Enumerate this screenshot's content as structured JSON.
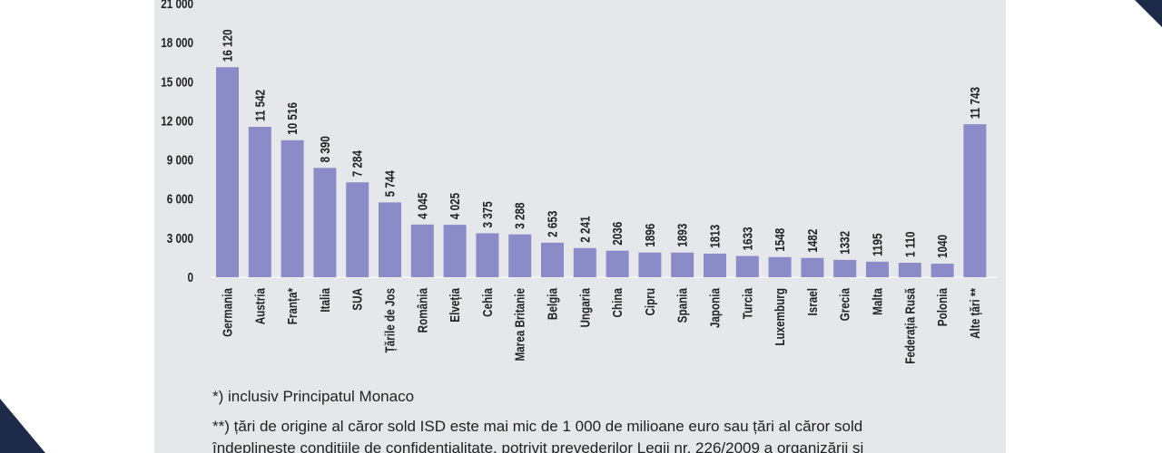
{
  "chart_data": {
    "type": "bar",
    "categories": [
      "Germania",
      "Austria",
      "Franța*",
      "Italia",
      "SUA",
      "Țările de Jos",
      "România",
      "Elveția",
      "Cehia",
      "Marea Britanie",
      "Belgia",
      "Ungaria",
      "China",
      "Cipru",
      "Spania",
      "Japonia",
      "Turcia",
      "Luxemburg",
      "Israel",
      "Grecia",
      "Malta",
      "Federația Rusă",
      "Polonia",
      "Alte țări **"
    ],
    "values": [
      16120,
      11542,
      10516,
      8390,
      7284,
      5744,
      4045,
      4025,
      3375,
      3288,
      2653,
      2241,
      2036,
      1896,
      1893,
      1813,
      1633,
      1548,
      1482,
      1332,
      1195,
      1110,
      1040,
      11743
    ],
    "value_labels": [
      "16 120",
      "11 542",
      "10 516",
      "8 390",
      "7 284",
      "5 744",
      "4 045",
      "4 025",
      "3 375",
      "3 288",
      "2 653",
      "2 241",
      "2036",
      "1896",
      "1893",
      "1813",
      "1633",
      "1548",
      "1482",
      "1332",
      "1195",
      "1 110",
      "1040",
      "11 743"
    ],
    "y_ticks": [
      0,
      3000,
      6000,
      9000,
      12000,
      15000,
      18000,
      21000
    ],
    "y_tick_labels": [
      "0",
      "3 000",
      "6 000",
      "9 000",
      "12 000",
      "15 000",
      "18 000",
      "21 000"
    ],
    "ylim": [
      0,
      21000
    ],
    "bar_color": "#8b8cc7",
    "title": "",
    "xlabel": "",
    "ylabel": ""
  },
  "footnotes": {
    "note1": "*) inclusiv Principatul Monaco",
    "note2": "**) țări de origine al căror sold ISD este mai mic de 1 000 de milioane euro sau țări al căror sold",
    "note3": "îndeplinește condițiile de confidențialitate, potrivit prevederilor Legii nr. 226/2009 a organizării și"
  }
}
